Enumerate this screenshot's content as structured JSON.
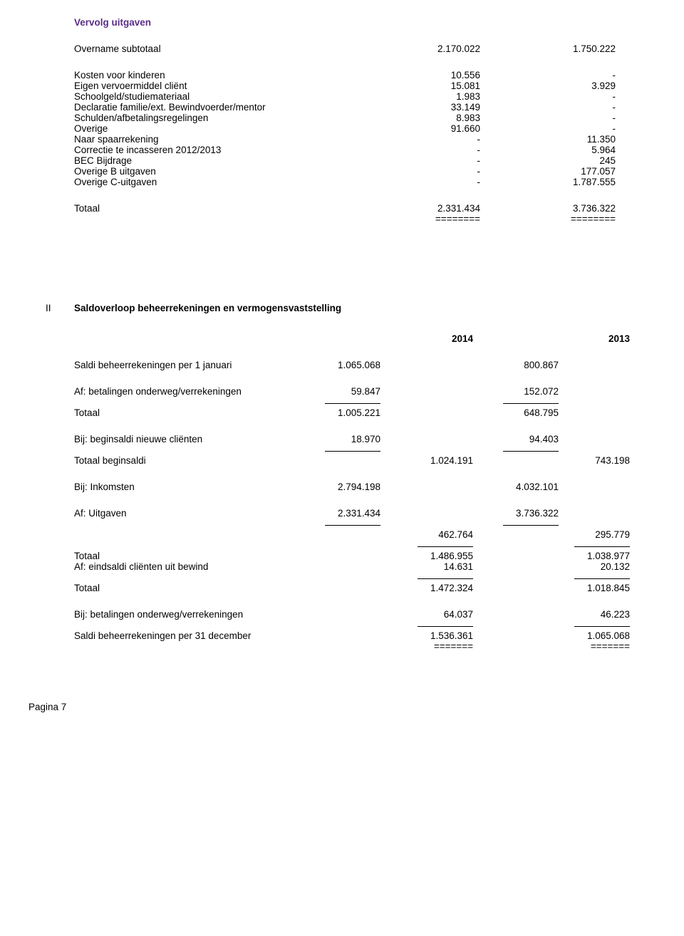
{
  "section1": {
    "title": "Vervolg uitgaven",
    "overname": {
      "label": "Overname subtotaal",
      "c1": "2.170.022",
      "c2": "1.750.222"
    },
    "rows": [
      {
        "label": "Kosten voor kinderen",
        "c1": "10.556",
        "c2": "-"
      },
      {
        "label": "Eigen vervoermiddel cliënt",
        "c1": "15.081",
        "c2": "3.929"
      },
      {
        "label": "Schoolgeld/studiemateriaal",
        "c1": "1.983",
        "c2": "-"
      },
      {
        "label": "Declaratie familie/ext. Bewindvoerder/mentor",
        "c1": "33.149",
        "c2": "-"
      },
      {
        "label": "Schulden/afbetalingsregelingen",
        "c1": "8.983",
        "c2": "-"
      },
      {
        "label": "Overige",
        "c1": "91.660",
        "c2": "-"
      },
      {
        "label": "Naar spaarrekening",
        "c1": "-",
        "c2": "11.350"
      },
      {
        "label": "Correctie te incasseren 2012/2013",
        "c1": "-",
        "c2": "5.964"
      },
      {
        "label": "BEC Bijdrage",
        "c1": "-",
        "c2": "245"
      },
      {
        "label": "Overige B uitgaven",
        "c1": "-",
        "c2": "177.057"
      },
      {
        "label": "Overige C-uitgaven",
        "c1": "-",
        "c2": "1.787.555"
      }
    ],
    "total": {
      "label": "Totaal",
      "c1": "2.331.434",
      "c2": "3.736.322"
    },
    "eq": "========"
  },
  "section2": {
    "roman": "II",
    "title": "Saldoverloop beheerrekeningen en vermogensvaststelling",
    "year1": "2014",
    "year2": "2013",
    "r_saldi_jan": {
      "label": "Saldi beheerrekeningen per 1 januari",
      "c1": "1.065.068",
      "c3": "800.867"
    },
    "r_af_betal": {
      "label": "Af: betalingen onderweg/verrekeningen",
      "c1": "59.847",
      "c3": "152.072"
    },
    "r_tot1": {
      "label": "Totaal",
      "c1": "1.005.221",
      "c3": "648.795"
    },
    "r_bij_begin": {
      "label": "Bij: beginsaldi nieuwe cliënten",
      "c1": "18.970",
      "c3": "94.403"
    },
    "r_tot_begin": {
      "label": "Totaal beginsaldi",
      "c2": "1.024.191",
      "c4": "743.198"
    },
    "r_bij_ink": {
      "label": "Bij: Inkomsten",
      "c1": "2.794.198",
      "c3": "4.032.101"
    },
    "r_af_uitg": {
      "label": "Af: Uitgaven",
      "c1": "2.331.434",
      "c3": "3.736.322"
    },
    "r_net": {
      "label": "",
      "c2": "462.764",
      "c4": "295.779"
    },
    "r_tot2": {
      "label": "Totaal",
      "c2": "1.486.955",
      "c4": "1.038.977"
    },
    "r_af_eind": {
      "label": "Af:  eindsaldi cliënten uit bewind",
      "c2": "14.631",
      "c4": "20.132"
    },
    "r_tot3": {
      "label": "Totaal",
      "c2": "1.472.324",
      "c4": "1.018.845"
    },
    "r_bij_betal2": {
      "label": "Bij: betalingen onderweg/verrekeningen",
      "c2": "64.037",
      "c4": "46.223"
    },
    "r_saldi_dec": {
      "label": "Saldi beheerrekeningen per 31 december",
      "c2": "1.536.361",
      "c4": "1.065.068"
    },
    "eq": "======="
  },
  "footer": "Pagina 7"
}
